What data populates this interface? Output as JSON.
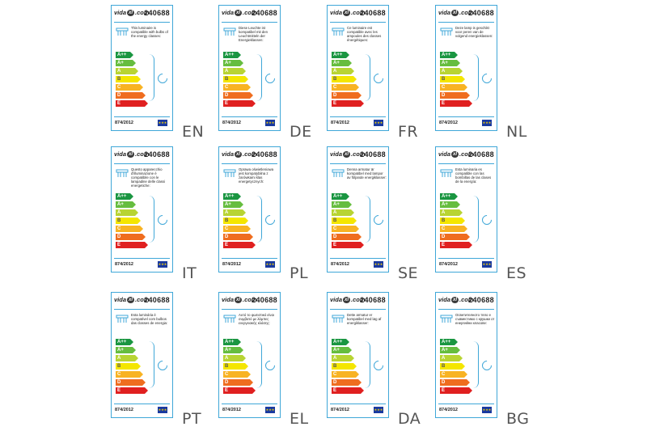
{
  "product_code": "240688",
  "brand": {
    "left": "vida",
    "mark": "xl",
    "right": ".com"
  },
  "regulation": "874/2012",
  "eu_flag_icon": "eu-flag-icon",
  "scale": [
    {
      "label": "A++",
      "color": "#1a9641"
    },
    {
      "label": "A+",
      "color": "#66bd3f"
    },
    {
      "label": "A",
      "color": "#b8d433"
    },
    {
      "label": "B",
      "color": "#f4e600"
    },
    {
      "label": "C",
      "color": "#f8b323"
    },
    {
      "label": "D",
      "color": "#ef6d1f"
    },
    {
      "label": "E",
      "color": "#e02020"
    }
  ],
  "labels": [
    {
      "lang": "EN",
      "text": "This luminaire is compatible with bulbs of the energy classes:"
    },
    {
      "lang": "DE",
      "text": "Diese Leuchte ist kompatibel mit den Leuchtmitteln der Energieklassen:"
    },
    {
      "lang": "FR",
      "text": "Ce luminaire est compatible avec les ampoules des classes énergétiques:"
    },
    {
      "lang": "NL",
      "text": "Deze lamp is geschikt voor peren van de volgend energieklassen:"
    },
    {
      "lang": "IT",
      "text": "Questo apparecchio d'illuminazione è compatibile con le lampadine delle classi energetiche:"
    },
    {
      "lang": "PL",
      "text": "Oprawa oświetleniowa jest kompatybilna z żarówkami klas energetycznych:"
    },
    {
      "lang": "SE",
      "text": "Denna armatur är kompatibel med lampor av följande energiklasser:"
    },
    {
      "lang": "ES",
      "text": "Esta luminaria es compatible con las bombillas de las clases de la energía:"
    },
    {
      "lang": "PT",
      "text": "Esta luminária é compatível com bulbos das classes de energia:"
    },
    {
      "lang": "EL",
      "text": "Αυτό το φωτιστικό είναι συμβατό με λάμπες ενεργειακής κλάσης:"
    },
    {
      "lang": "DA",
      "text": "Dette armatur er kompatibel med løg af energiklasser:"
    },
    {
      "lang": "BG",
      "text": "Осветителното тяло е съвместимо с крушки от енергийни класове:"
    }
  ]
}
